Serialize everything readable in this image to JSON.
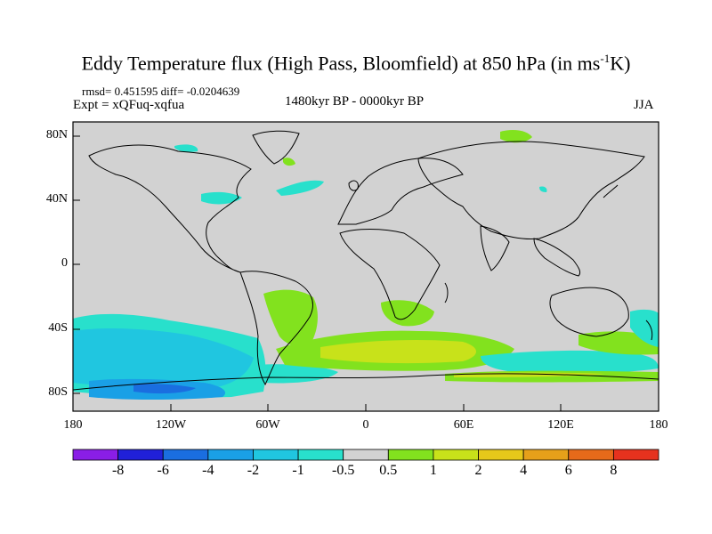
{
  "header": {
    "title_main": "Eddy Temperature flux (High Pass, Bloomfield) at 850 hPa (in ms",
    "title_sup": "-1",
    "title_tail": "K)",
    "rmsd_line": "rmsd= 0.451595 diff= -0.0204639",
    "expt_line": "Expt = xQFuq-xqfua",
    "period": "1480kyr BP - 0000kyr BP",
    "season": "JJA"
  },
  "axes": {
    "y_ticks": [
      "80N",
      "40N",
      "0",
      "40S",
      "80S"
    ],
    "x_ticks": [
      "180",
      "120W",
      "60W",
      "0",
      "60E",
      "120E",
      "180"
    ]
  },
  "colorbar": {
    "labels": [
      "-8",
      "-6",
      "-4",
      "-2",
      "-1",
      "-0.5",
      "0.5",
      "1",
      "2",
      "4",
      "6",
      "8"
    ],
    "colors": [
      "#8a1ee6",
      "#2020d8",
      "#1a6ee0",
      "#1aa0e6",
      "#20c6e0",
      "#28e0cc",
      "#d2d2d2",
      "#82e21e",
      "#c8e21a",
      "#e6c81a",
      "#e6a01a",
      "#e66a1a",
      "#e6321e"
    ]
  },
  "map_colors": {
    "ocean_background": "#d2d2d2",
    "positive_low": "#82e21e",
    "positive_mid": "#c8e21a",
    "negative_low": "#28e0cc",
    "negative_mid": "#20c6e0",
    "negative_high": "#1aa0e6",
    "negative_strong": "#1a6ee0",
    "coast": "#000000"
  }
}
